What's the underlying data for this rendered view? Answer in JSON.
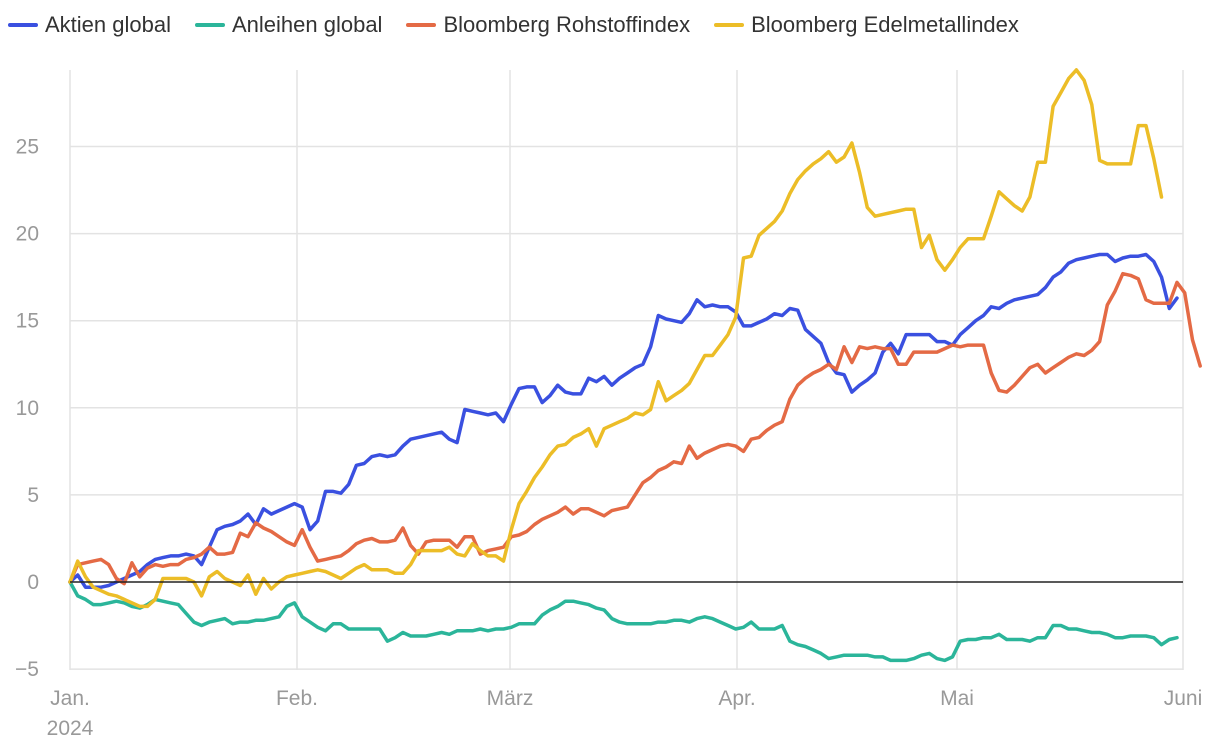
{
  "chart_data": {
    "type": "line",
    "title": "",
    "xlabel": "",
    "ylabel": "",
    "x_axis": {
      "tick_labels": [
        "Jan.",
        "Feb.",
        "März",
        "Apr.",
        "Mai",
        "Juni"
      ],
      "year_label": "2024",
      "range": [
        0,
        107
      ]
    },
    "y_axis": {
      "ticks": [
        -5,
        0,
        5,
        10,
        15,
        20,
        25
      ],
      "tick_labels": [
        "−5",
        "0",
        "5",
        "10",
        "15",
        "20",
        "25"
      ],
      "range": [
        -5,
        29.5
      ]
    },
    "grid": true,
    "legend_position": "top-left",
    "series": [
      {
        "name": "Aktien global",
        "color": "#3a50e0",
        "values": [
          0,
          0.4,
          -0.3,
          -0.3,
          -0.3,
          -0.2,
          0,
          0.2,
          0.4,
          0.6,
          1.0,
          1.3,
          1.4,
          1.5,
          1.5,
          1.6,
          1.5,
          1.0,
          2.0,
          3.0,
          3.2,
          3.3,
          3.5,
          3.9,
          3.3,
          4.2,
          3.9,
          4.1,
          4.3,
          4.5,
          4.3,
          3.0,
          3.5,
          5.2,
          5.2,
          5.1,
          5.6,
          6.7,
          6.8,
          7.2,
          7.3,
          7.2,
          7.3,
          7.8,
          8.2,
          8.3,
          8.4,
          8.5,
          8.6,
          8.2,
          8.0,
          9.9,
          9.8,
          9.7,
          9.6,
          9.7,
          9.2,
          10.2,
          11.1,
          11.2,
          11.2,
          10.3,
          10.7,
          11.3,
          10.9,
          10.8,
          10.8,
          11.7,
          11.5,
          11.8,
          11.3,
          11.7,
          12.0,
          12.3,
          12.5,
          13.5,
          15.3,
          15.1,
          15.0,
          14.9,
          15.4,
          16.2,
          15.8,
          15.9,
          15.8,
          15.8,
          15.5,
          14.7,
          14.7,
          14.9,
          15.1,
          15.4,
          15.3,
          15.7,
          15.6,
          14.5,
          14.1,
          13.7,
          12.6,
          12.0,
          11.9,
          10.9,
          11.3,
          11.6,
          12.0,
          13.2,
          13.7,
          13.1,
          14.2,
          14.2,
          14.2,
          14.2,
          13.8,
          13.8,
          13.6,
          14.2,
          14.6,
          15.0,
          15.3,
          15.8,
          15.7,
          16.0,
          16.2,
          16.3,
          16.4,
          16.5,
          16.9,
          17.5,
          17.8,
          18.3,
          18.5,
          18.6,
          18.7,
          18.8,
          18.8,
          18.4,
          18.6,
          18.7,
          18.7,
          18.8,
          18.4,
          17.5,
          15.7,
          16.3
        ]
      },
      {
        "name": "Anleihen global",
        "color": "#2bb59a",
        "values": [
          0,
          -0.8,
          -1.0,
          -1.3,
          -1.3,
          -1.2,
          -1.1,
          -1.2,
          -1.4,
          -1.5,
          -1.3,
          -1.0,
          -1.1,
          -1.2,
          -1.3,
          -1.8,
          -2.3,
          -2.5,
          -2.3,
          -2.2,
          -2.1,
          -2.4,
          -2.3,
          -2.3,
          -2.2,
          -2.2,
          -2.1,
          -2.0,
          -1.4,
          -1.2,
          -2.0,
          -2.3,
          -2.6,
          -2.8,
          -2.4,
          -2.4,
          -2.7,
          -2.7,
          -2.7,
          -2.7,
          -2.7,
          -3.4,
          -3.2,
          -2.9,
          -3.1,
          -3.1,
          -3.1,
          -3.0,
          -2.9,
          -3.0,
          -2.8,
          -2.8,
          -2.8,
          -2.7,
          -2.8,
          -2.7,
          -2.7,
          -2.6,
          -2.4,
          -2.4,
          -2.4,
          -1.9,
          -1.6,
          -1.4,
          -1.1,
          -1.1,
          -1.2,
          -1.3,
          -1.5,
          -1.6,
          -2.1,
          -2.3,
          -2.4,
          -2.4,
          -2.4,
          -2.4,
          -2.3,
          -2.3,
          -2.2,
          -2.2,
          -2.3,
          -2.1,
          -2.0,
          -2.1,
          -2.3,
          -2.5,
          -2.7,
          -2.6,
          -2.3,
          -2.7,
          -2.7,
          -2.7,
          -2.5,
          -3.4,
          -3.6,
          -3.7,
          -3.9,
          -4.1,
          -4.4,
          -4.3,
          -4.2,
          -4.2,
          -4.2,
          -4.2,
          -4.3,
          -4.3,
          -4.5,
          -4.5,
          -4.5,
          -4.4,
          -4.2,
          -4.1,
          -4.4,
          -4.5,
          -4.3,
          -3.4,
          -3.3,
          -3.3,
          -3.2,
          -3.2,
          -3.0,
          -3.3,
          -3.3,
          -3.3,
          -3.4,
          -3.2,
          -3.2,
          -2.5,
          -2.5,
          -2.7,
          -2.7,
          -2.8,
          -2.9,
          -2.9,
          -3.0,
          -3.2,
          -3.2,
          -3.1,
          -3.1,
          -3.1,
          -3.2,
          -3.6,
          -3.3,
          -3.2
        ]
      },
      {
        "name": "Bloomberg Rohstoffindex",
        "color": "#e46a45",
        "values": [
          0,
          1.0,
          1.1,
          1.2,
          1.3,
          1.0,
          0.2,
          -0.1,
          1.1,
          0.3,
          0.8,
          1.0,
          0.9,
          1.0,
          1.0,
          1.3,
          1.4,
          1.6,
          2.0,
          1.6,
          1.6,
          1.7,
          2.8,
          2.6,
          3.4,
          3.1,
          2.9,
          2.6,
          2.3,
          2.1,
          3.0,
          2.0,
          1.2,
          1.3,
          1.4,
          1.5,
          1.8,
          2.2,
          2.4,
          2.5,
          2.3,
          2.3,
          2.4,
          3.1,
          2.1,
          1.6,
          2.3,
          2.4,
          2.4,
          2.4,
          2.0,
          2.6,
          2.6,
          1.6,
          1.8,
          1.9,
          2.0,
          2.6,
          2.7,
          2.9,
          3.3,
          3.6,
          3.8,
          4.0,
          4.3,
          3.9,
          4.2,
          4.2,
          4.0,
          3.8,
          4.1,
          4.2,
          4.3,
          5.0,
          5.7,
          6.0,
          6.4,
          6.6,
          6.9,
          6.8,
          7.8,
          7.1,
          7.4,
          7.6,
          7.8,
          7.9,
          7.8,
          7.5,
          8.2,
          8.3,
          8.7,
          9.0,
          9.2,
          10.5,
          11.3,
          11.7,
          12.0,
          12.2,
          12.5,
          12.2,
          13.5,
          12.6,
          13.5,
          13.4,
          13.5,
          13.4,
          13.4,
          12.5,
          12.5,
          13.2,
          13.2,
          13.2,
          13.2,
          13.4,
          13.6,
          13.5,
          13.6,
          13.6,
          13.6,
          12.0,
          11.0,
          10.9,
          11.3,
          11.8,
          12.3,
          12.5,
          12.0,
          12.3,
          12.6,
          12.9,
          13.1,
          13.0,
          13.3,
          13.8,
          15.9,
          16.7,
          17.7,
          17.6,
          17.4,
          16.2,
          16.0,
          16.0,
          16.0,
          17.2,
          16.6,
          13.9,
          12.4
        ]
      },
      {
        "name": "Bloomberg Edelmetallindex",
        "color": "#ecbd27",
        "values": [
          0,
          1.2,
          0.3,
          -0.3,
          -0.5,
          -0.7,
          -0.8,
          -1.0,
          -1.2,
          -1.4,
          -1.4,
          -1.0,
          0.2,
          0.2,
          0.2,
          0.2,
          0.0,
          -0.8,
          0.3,
          0.6,
          0.2,
          0.0,
          -0.2,
          0.4,
          -0.7,
          0.2,
          -0.4,
          0.0,
          0.3,
          0.4,
          0.5,
          0.6,
          0.7,
          0.6,
          0.4,
          0.2,
          0.5,
          0.8,
          1.0,
          0.7,
          0.7,
          0.7,
          0.5,
          0.5,
          1.0,
          1.8,
          1.8,
          1.8,
          1.8,
          2.0,
          1.6,
          1.5,
          2.2,
          1.8,
          1.5,
          1.5,
          1.2,
          3.0,
          4.5,
          5.2,
          6.0,
          6.6,
          7.3,
          7.8,
          7.9,
          8.3,
          8.5,
          8.8,
          7.8,
          8.8,
          9.0,
          9.2,
          9.4,
          9.7,
          9.6,
          9.9,
          11.5,
          10.4,
          10.7,
          11.0,
          11.4,
          12.2,
          13.0,
          13.0,
          13.6,
          14.2,
          15.2,
          18.6,
          18.7,
          19.9,
          20.3,
          20.7,
          21.3,
          22.3,
          23.1,
          23.6,
          24.0,
          24.3,
          24.7,
          24.1,
          24.4,
          25.2,
          23.5,
          21.5,
          21.0,
          21.1,
          21.2,
          21.3,
          21.4,
          21.4,
          19.2,
          19.9,
          18.5,
          17.9,
          18.5,
          19.2,
          19.7,
          19.7,
          19.7,
          21.0,
          22.4,
          22.0,
          21.6,
          21.3,
          22.1,
          24.1,
          24.1,
          27.3,
          28.1,
          28.9,
          29.4,
          28.8,
          27.4,
          24.2,
          24.0,
          24.0,
          24.0,
          24.0,
          26.2,
          26.2,
          24.3,
          22.1
        ]
      }
    ]
  }
}
